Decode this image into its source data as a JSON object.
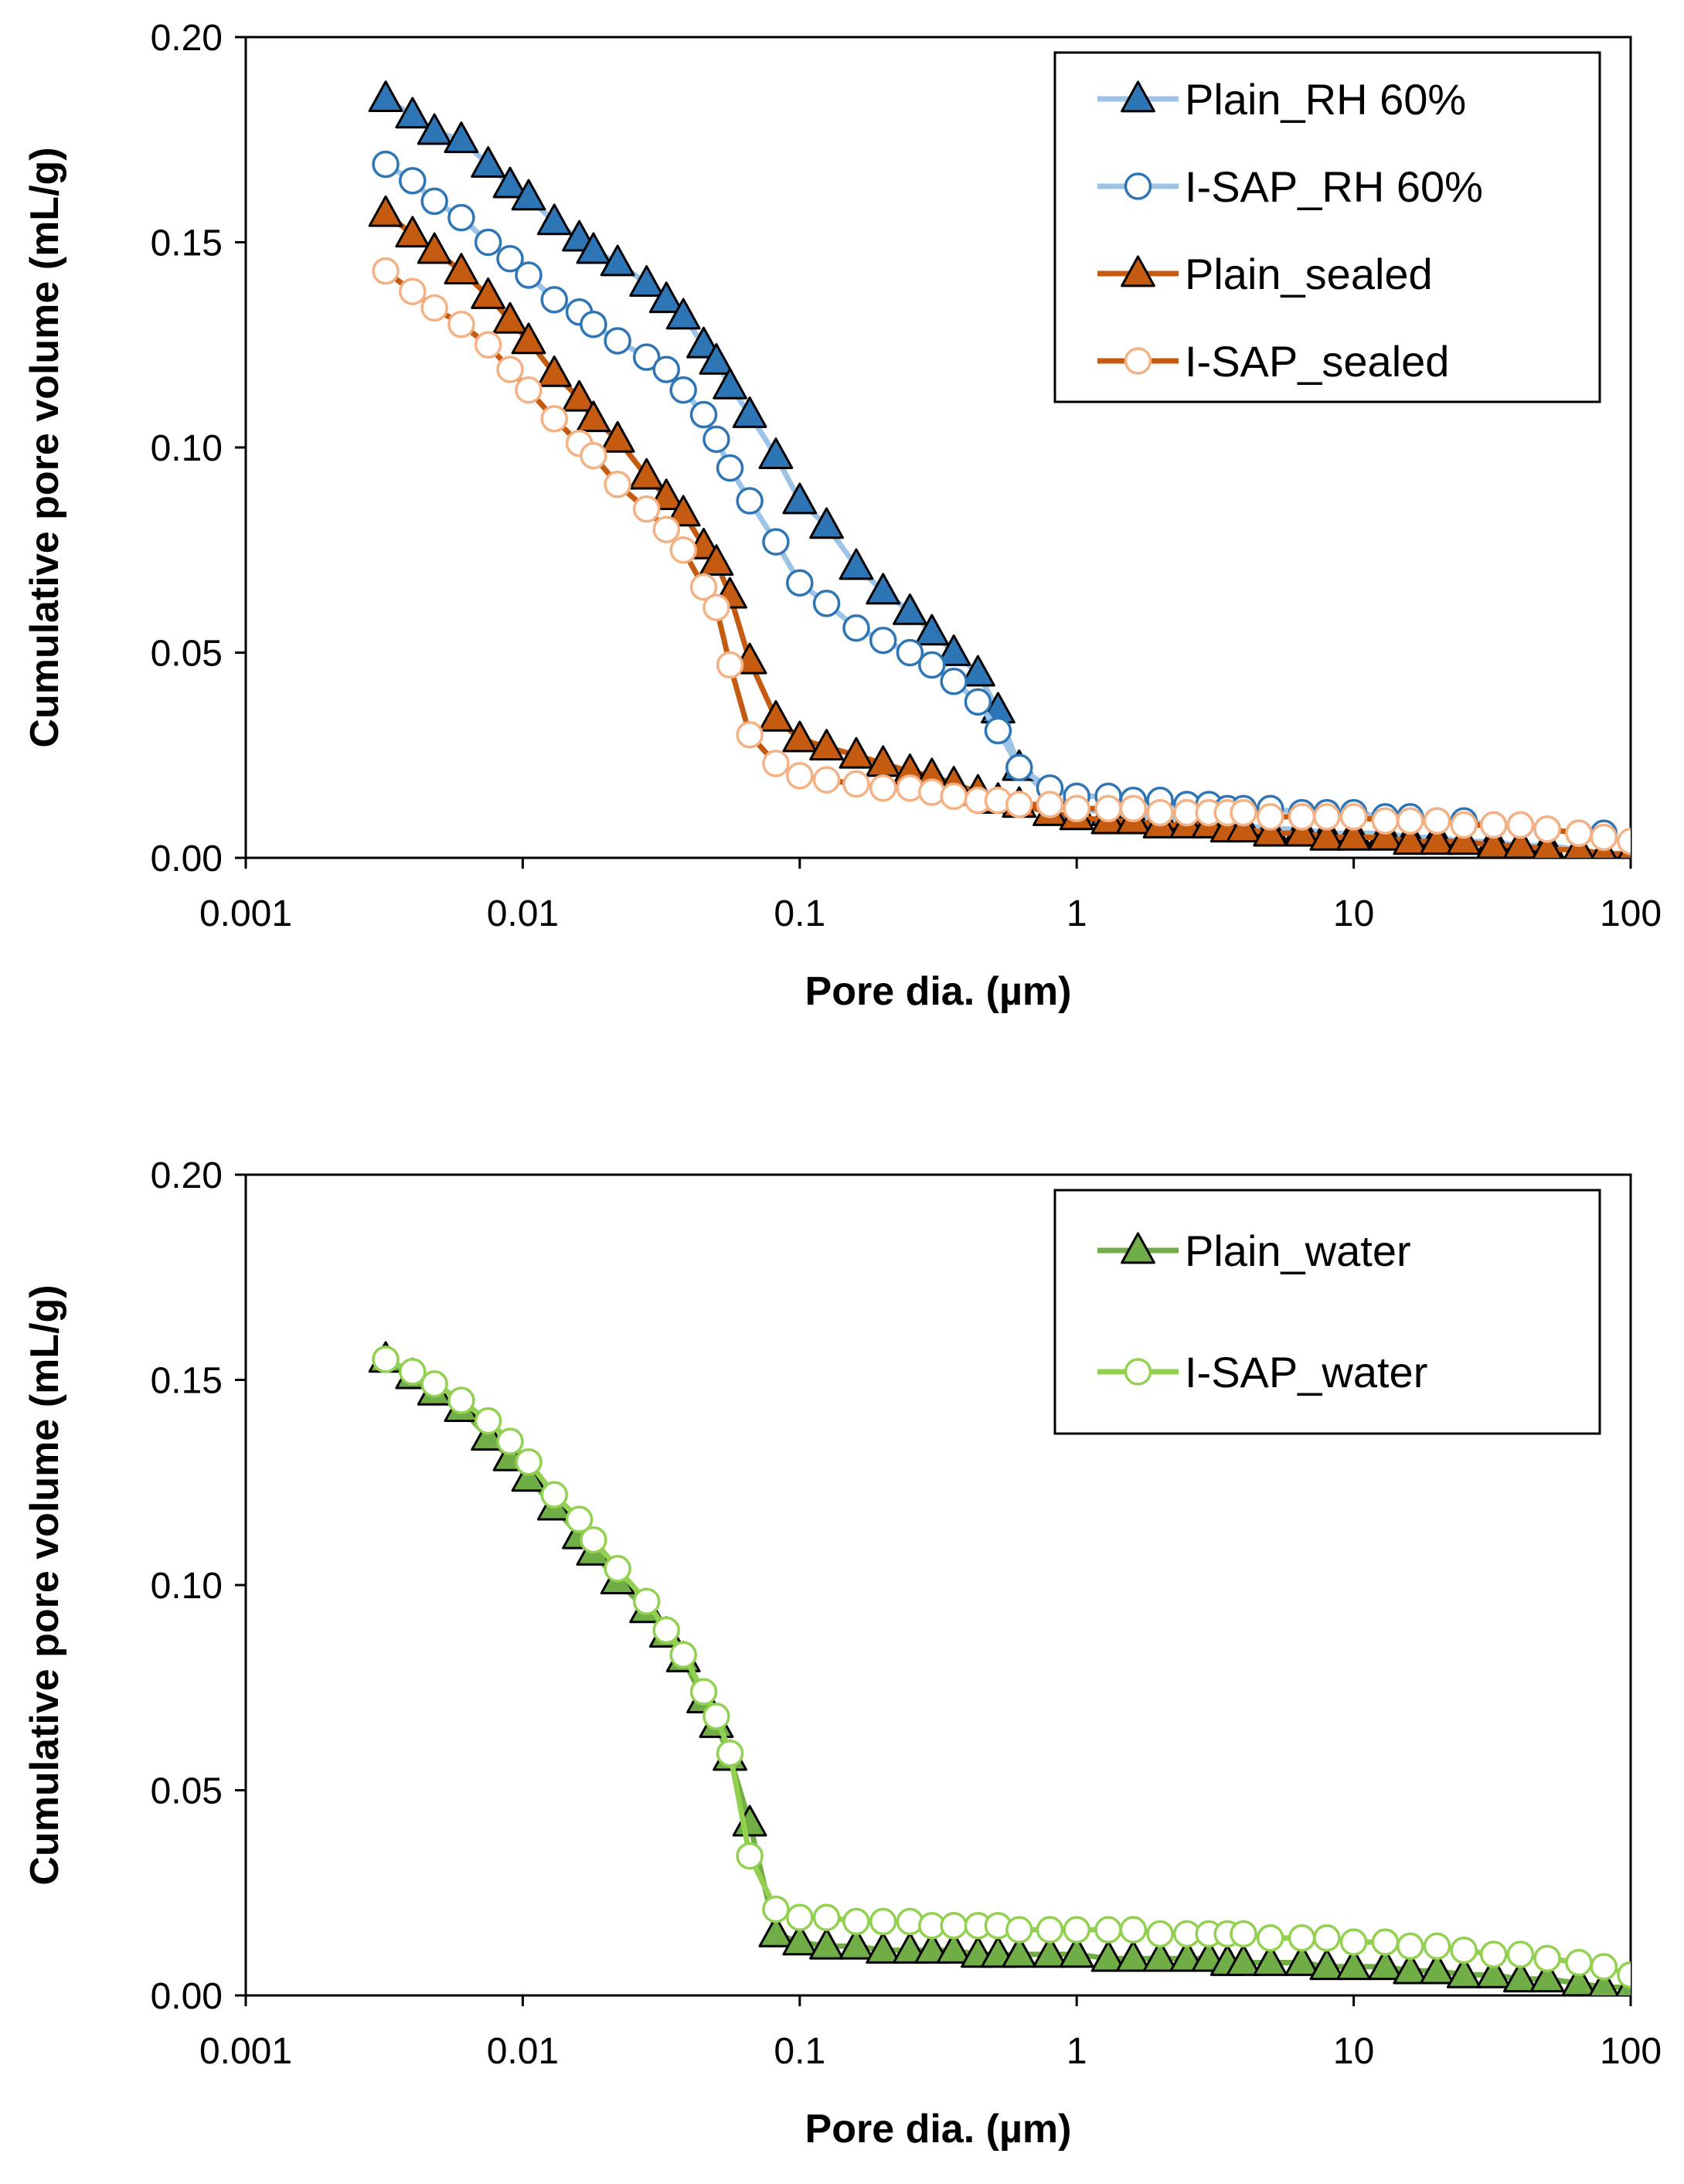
{
  "chart_data": [
    {
      "type": "line",
      "xscale": "log",
      "xlabel": "Pore dia. (µm)",
      "ylabel": "Cumulative pore volume (mL/g)",
      "xlim": [
        0.001,
        100
      ],
      "ylim": [
        0,
        0.2
      ],
      "xticks": [
        0.001,
        0.01,
        0.1,
        1,
        10,
        100
      ],
      "xtick_labels": [
        "0.001",
        "0.01",
        "0.1",
        "1",
        "10",
        "100"
      ],
      "yticks": [
        0,
        0.05,
        0.1,
        0.15,
        0.2
      ],
      "ytick_labels": [
        "0.00",
        "0.05",
        "0.10",
        "0.15",
        "0.20"
      ],
      "legend_position": "top-right",
      "series": [
        {
          "name": "Plain_RH 60%",
          "marker": "triangle",
          "marker_fill": "#2E75B6",
          "marker_stroke": "#000000",
          "line_color": "#9DC3E6",
          "x": [
            0.0032,
            0.004,
            0.0048,
            0.006,
            0.0075,
            0.009,
            0.0105,
            0.013,
            0.016,
            0.018,
            0.022,
            0.028,
            0.033,
            0.038,
            0.045,
            0.05,
            0.056,
            0.066,
            0.082,
            0.1,
            0.125,
            0.16,
            0.2,
            0.25,
            0.3,
            0.36,
            0.44,
            0.52,
            0.62,
            0.8,
            1.0,
            1.3,
            1.6,
            2.0,
            2.5,
            3.0,
            3.5,
            4.0,
            5.0,
            6.5,
            8.0,
            10,
            13,
            16,
            20,
            25,
            32,
            40,
            50,
            65,
            80,
            100
          ],
          "values": [
            0.185,
            0.181,
            0.177,
            0.175,
            0.169,
            0.164,
            0.161,
            0.155,
            0.151,
            0.148,
            0.145,
            0.14,
            0.136,
            0.132,
            0.125,
            0.121,
            0.115,
            0.108,
            0.098,
            0.087,
            0.081,
            0.071,
            0.065,
            0.06,
            0.055,
            0.05,
            0.045,
            0.036,
            0.022,
            0.015,
            0.012,
            0.011,
            0.01,
            0.01,
            0.009,
            0.009,
            0.008,
            0.008,
            0.007,
            0.007,
            0.006,
            0.006,
            0.006,
            0.005,
            0.005,
            0.004,
            0.004,
            0.003,
            0.003,
            0.002,
            0.001,
            0.001
          ]
        },
        {
          "name": "I-SAP_RH 60%",
          "marker": "circle",
          "marker_fill": "#FFFFFF",
          "marker_stroke": "#2E75B6",
          "line_color": "#9DC3E6",
          "x": [
            0.0032,
            0.004,
            0.0048,
            0.006,
            0.0075,
            0.009,
            0.0105,
            0.013,
            0.016,
            0.018,
            0.022,
            0.028,
            0.033,
            0.038,
            0.045,
            0.05,
            0.056,
            0.066,
            0.082,
            0.1,
            0.125,
            0.16,
            0.2,
            0.25,
            0.3,
            0.36,
            0.44,
            0.52,
            0.62,
            0.8,
            1.0,
            1.3,
            1.6,
            2.0,
            2.5,
            3.0,
            3.5,
            4.0,
            5.0,
            6.5,
            8.0,
            10,
            13,
            16,
            20,
            25,
            32,
            40,
            50,
            65,
            80
          ],
          "values": [
            0.169,
            0.165,
            0.16,
            0.156,
            0.15,
            0.146,
            0.142,
            0.136,
            0.133,
            0.13,
            0.126,
            0.122,
            0.119,
            0.114,
            0.108,
            0.102,
            0.095,
            0.087,
            0.077,
            0.067,
            0.062,
            0.056,
            0.053,
            0.05,
            0.047,
            0.043,
            0.038,
            0.031,
            0.022,
            0.017,
            0.015,
            0.015,
            0.014,
            0.014,
            0.013,
            0.013,
            0.012,
            0.012,
            0.012,
            0.011,
            0.011,
            0.011,
            0.01,
            0.01,
            0.009,
            0.009,
            0.008,
            0.008,
            0.007,
            0.006,
            0.006
          ]
        },
        {
          "name": "Plain_sealed",
          "marker": "triangle",
          "marker_fill": "#C55A11",
          "marker_stroke": "#000000",
          "line_color": "#C55A11",
          "x": [
            0.0032,
            0.004,
            0.0048,
            0.006,
            0.0075,
            0.009,
            0.0105,
            0.013,
            0.016,
            0.018,
            0.022,
            0.028,
            0.033,
            0.038,
            0.045,
            0.05,
            0.056,
            0.066,
            0.082,
            0.1,
            0.125,
            0.16,
            0.2,
            0.25,
            0.3,
            0.36,
            0.44,
            0.52,
            0.62,
            0.8,
            1.0,
            1.3,
            1.6,
            2.0,
            2.5,
            3.0,
            3.5,
            4.0,
            5.0,
            6.5,
            8.0,
            10,
            13,
            16,
            20,
            25,
            32,
            40,
            50,
            65,
            80,
            100
          ],
          "values": [
            0.157,
            0.152,
            0.148,
            0.143,
            0.137,
            0.131,
            0.126,
            0.118,
            0.112,
            0.107,
            0.102,
            0.093,
            0.088,
            0.084,
            0.076,
            0.072,
            0.064,
            0.048,
            0.034,
            0.029,
            0.027,
            0.025,
            0.023,
            0.021,
            0.02,
            0.018,
            0.016,
            0.014,
            0.013,
            0.011,
            0.01,
            0.009,
            0.009,
            0.008,
            0.008,
            0.008,
            0.007,
            0.007,
            0.006,
            0.006,
            0.005,
            0.005,
            0.005,
            0.004,
            0.004,
            0.004,
            0.003,
            0.003,
            0.002,
            0.002,
            0.001,
            0.001
          ]
        },
        {
          "name": "I-SAP_sealed",
          "marker": "circle",
          "marker_fill": "#FFFFFF",
          "marker_stroke": "#F4B183",
          "line_color": "#C55A11",
          "x": [
            0.0032,
            0.004,
            0.0048,
            0.006,
            0.0075,
            0.009,
            0.0105,
            0.013,
            0.016,
            0.018,
            0.022,
            0.028,
            0.033,
            0.038,
            0.045,
            0.05,
            0.056,
            0.066,
            0.082,
            0.1,
            0.125,
            0.16,
            0.2,
            0.25,
            0.3,
            0.36,
            0.44,
            0.52,
            0.62,
            0.8,
            1.0,
            1.3,
            1.6,
            2.0,
            2.5,
            3.0,
            3.5,
            4.0,
            5.0,
            6.5,
            8.0,
            10,
            13,
            16,
            20,
            25,
            32,
            40,
            50,
            65,
            80,
            100
          ],
          "values": [
            0.143,
            0.138,
            0.134,
            0.13,
            0.125,
            0.119,
            0.114,
            0.107,
            0.101,
            0.098,
            0.091,
            0.085,
            0.08,
            0.075,
            0.066,
            0.061,
            0.047,
            0.03,
            0.023,
            0.02,
            0.019,
            0.018,
            0.017,
            0.017,
            0.016,
            0.015,
            0.014,
            0.014,
            0.013,
            0.013,
            0.012,
            0.012,
            0.012,
            0.011,
            0.011,
            0.011,
            0.011,
            0.011,
            0.01,
            0.01,
            0.01,
            0.01,
            0.009,
            0.009,
            0.009,
            0.008,
            0.008,
            0.008,
            0.007,
            0.006,
            0.005,
            0.004
          ]
        }
      ]
    },
    {
      "type": "line",
      "xscale": "log",
      "xlabel": "Pore dia. (µm)",
      "ylabel": "Cumulative pore volume (mL/g)",
      "xlim": [
        0.001,
        100
      ],
      "ylim": [
        0,
        0.2
      ],
      "xticks": [
        0.001,
        0.01,
        0.1,
        1,
        10,
        100
      ],
      "xtick_labels": [
        "0.001",
        "0.01",
        "0.1",
        "1",
        "10",
        "100"
      ],
      "yticks": [
        0,
        0.05,
        0.1,
        0.15,
        0.2
      ],
      "ytick_labels": [
        "0.00",
        "0.05",
        "0.10",
        "0.15",
        "0.20"
      ],
      "legend_position": "top-right",
      "series": [
        {
          "name": "Plain_water",
          "marker": "triangle",
          "marker_fill": "#70AD47",
          "marker_stroke": "#000000",
          "line_color": "#70AD47",
          "x": [
            0.0032,
            0.004,
            0.0048,
            0.006,
            0.0075,
            0.009,
            0.0105,
            0.013,
            0.016,
            0.018,
            0.022,
            0.028,
            0.033,
            0.038,
            0.045,
            0.05,
            0.056,
            0.066,
            0.082,
            0.1,
            0.125,
            0.16,
            0.2,
            0.25,
            0.3,
            0.36,
            0.44,
            0.52,
            0.62,
            0.8,
            1.0,
            1.3,
            1.6,
            2.0,
            2.5,
            3.0,
            3.5,
            4.0,
            5.0,
            6.5,
            8.0,
            10,
            13,
            16,
            20,
            25,
            32,
            40,
            50,
            65,
            80,
            100
          ],
          "values": [
            0.155,
            0.151,
            0.147,
            0.143,
            0.136,
            0.131,
            0.126,
            0.119,
            0.112,
            0.108,
            0.101,
            0.094,
            0.088,
            0.082,
            0.072,
            0.066,
            0.058,
            0.042,
            0.015,
            0.013,
            0.012,
            0.012,
            0.011,
            0.011,
            0.011,
            0.011,
            0.01,
            0.01,
            0.01,
            0.01,
            0.01,
            0.009,
            0.009,
            0.009,
            0.009,
            0.009,
            0.008,
            0.008,
            0.008,
            0.008,
            0.007,
            0.007,
            0.007,
            0.006,
            0.006,
            0.005,
            0.005,
            0.004,
            0.004,
            0.003,
            0.002,
            0.002
          ]
        },
        {
          "name": "I-SAP_water",
          "marker": "circle",
          "marker_fill": "#FFFFFF",
          "marker_stroke": "#92D050",
          "line_color": "#92D050",
          "x": [
            0.0032,
            0.004,
            0.0048,
            0.006,
            0.0075,
            0.009,
            0.0105,
            0.013,
            0.016,
            0.018,
            0.022,
            0.028,
            0.033,
            0.038,
            0.045,
            0.05,
            0.056,
            0.066,
            0.082,
            0.1,
            0.125,
            0.16,
            0.2,
            0.25,
            0.3,
            0.36,
            0.44,
            0.52,
            0.62,
            0.8,
            1.0,
            1.3,
            1.6,
            2.0,
            2.5,
            3.0,
            3.5,
            4.0,
            5.0,
            6.5,
            8.0,
            10,
            13,
            16,
            20,
            25,
            32,
            40,
            50,
            65,
            80,
            100
          ],
          "values": [
            0.155,
            0.152,
            0.149,
            0.145,
            0.14,
            0.135,
            0.13,
            0.122,
            0.116,
            0.111,
            0.104,
            0.096,
            0.089,
            0.083,
            0.074,
            0.068,
            0.059,
            0.034,
            0.021,
            0.019,
            0.019,
            0.018,
            0.018,
            0.018,
            0.017,
            0.017,
            0.017,
            0.017,
            0.016,
            0.016,
            0.016,
            0.016,
            0.016,
            0.015,
            0.015,
            0.015,
            0.015,
            0.015,
            0.014,
            0.014,
            0.014,
            0.013,
            0.013,
            0.012,
            0.012,
            0.011,
            0.01,
            0.01,
            0.009,
            0.008,
            0.007,
            0.005
          ]
        }
      ]
    }
  ]
}
